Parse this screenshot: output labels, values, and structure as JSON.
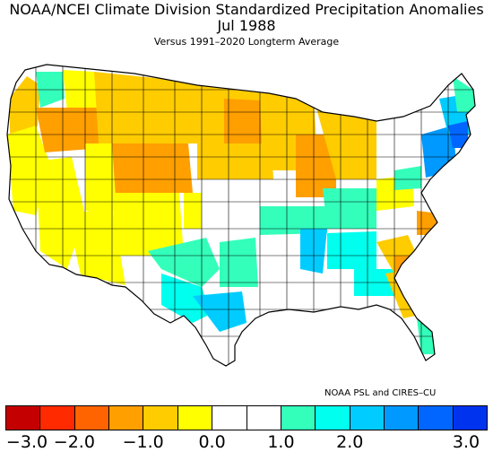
{
  "header": {
    "title_line1": "NOAA/NCEI Climate Division Standardized Precipitation Anomalies",
    "title_line2": "Jul 1988",
    "subtitle": "Versus 1991–2020 Longterm Average"
  },
  "credit": "NOAA PSL and CIRES–CU",
  "legend": {
    "colors": [
      "#c40000",
      "#ff2a00",
      "#ff6400",
      "#ff9f00",
      "#ffcc00",
      "#ffff00",
      "#ffffff",
      "#ffffff",
      "#33ffbb",
      "#00ffee",
      "#00ccff",
      "#0099ff",
      "#0066ff",
      "#0033ee"
    ],
    "tick_labels": [
      "−3.0",
      "−2.0",
      "−1.0",
      "0.0",
      "1.0",
      "2.0",
      "3.0"
    ]
  },
  "map": {
    "background": "#ffffff",
    "outline_color": "#000000",
    "palette": {
      "dry3": "#ff9f00",
      "dry2": "#ffcc00",
      "dry1": "#ffff00",
      "neutral": "#ffffff",
      "wet1": "#33ffbb",
      "wet2": "#00ffee",
      "wet3": "#00ccff",
      "wet4": "#0099ff",
      "wet5": "#0066ff"
    }
  }
}
